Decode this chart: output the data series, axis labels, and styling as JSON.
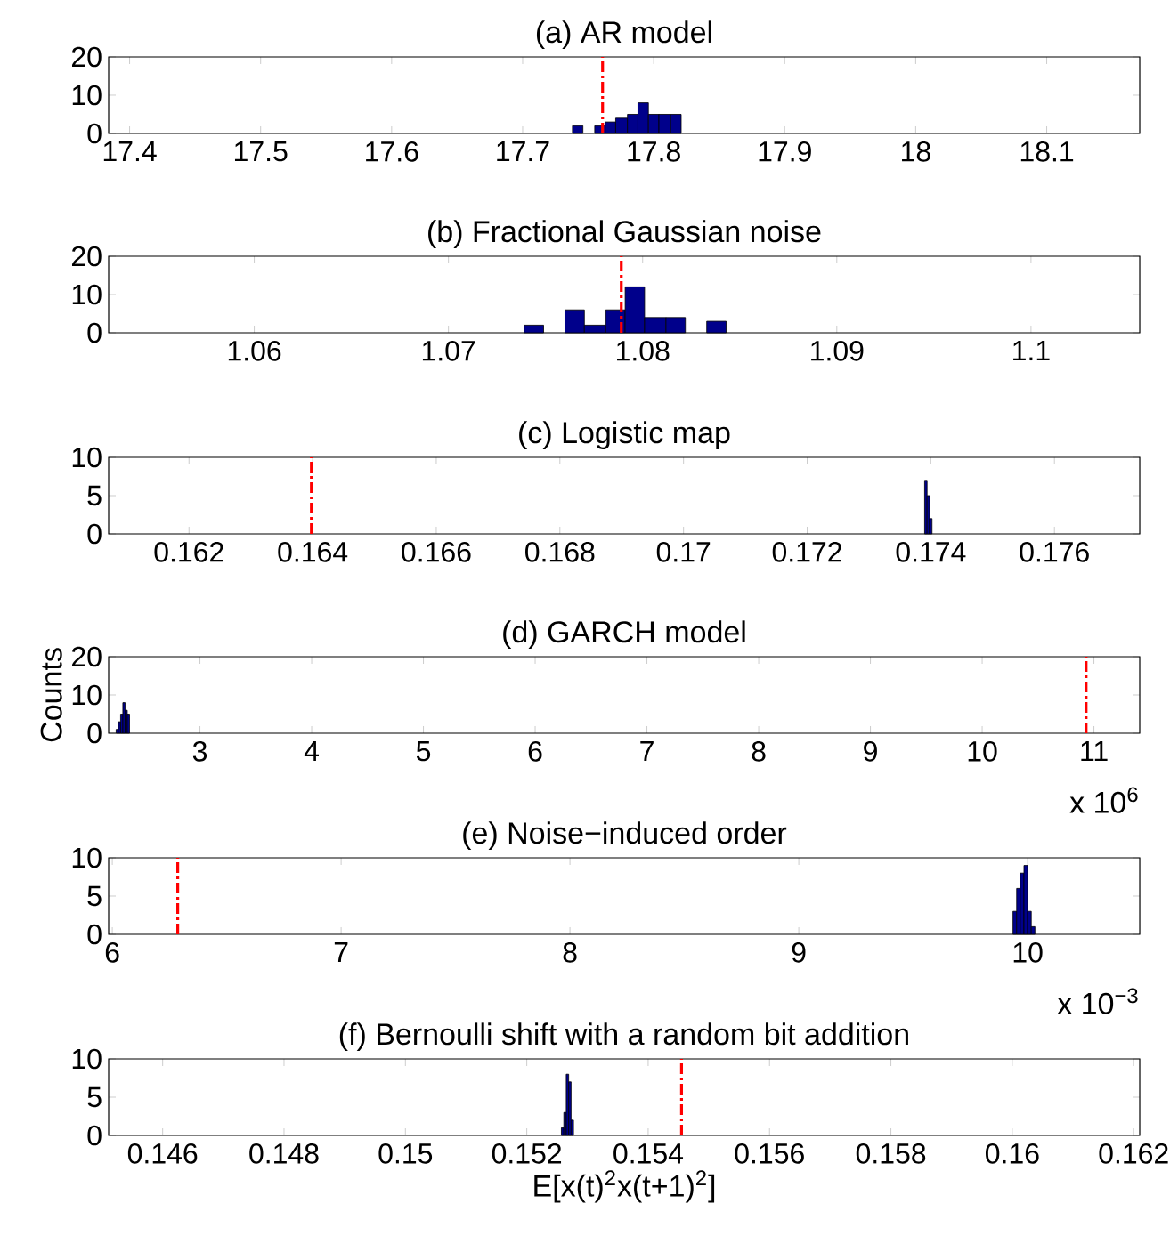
{
  "chart_data": [
    {
      "type": "histogram",
      "title": "(a) AR model",
      "bins": [
        17.738,
        17.746,
        17.755,
        17.763,
        17.771,
        17.78,
        17.788,
        17.796,
        17.804,
        17.813,
        17.821
      ],
      "values": [
        2,
        0,
        2,
        3,
        4,
        5,
        8,
        5,
        5,
        5
      ],
      "color": "#00008b",
      "xlim": [
        17.384,
        18.171
      ],
      "xticks": [
        17.4,
        17.5,
        17.6,
        17.7,
        17.8,
        17.9,
        18,
        18.1
      ],
      "ylim": [
        0,
        20
      ],
      "yticks": [
        0,
        10,
        20
      ],
      "ref_lines": [
        {
          "axis": "x",
          "value": 17.761,
          "color": "#ff0000",
          "line_style": "dashed"
        }
      ]
    },
    {
      "type": "histogram",
      "title": "(b) Fractional Gaussian noise",
      "bins": [
        1.0739,
        1.0749,
        1.076,
        1.077,
        1.0781,
        1.0791,
        1.0801,
        1.0812,
        1.0822,
        1.0833,
        1.0843
      ],
      "values": [
        2,
        0,
        6,
        2,
        6,
        12,
        4,
        4,
        0,
        3
      ],
      "color": "#00008b",
      "xlim": [
        1.0525,
        1.1056
      ],
      "xticks": [
        1.06,
        1.07,
        1.08,
        1.09,
        1.1
      ],
      "ylim": [
        0,
        20
      ],
      "yticks": [
        0,
        10,
        20
      ],
      "ref_lines": [
        {
          "axis": "x",
          "value": 1.0789,
          "color": "#ff0000",
          "line_style": "dashed"
        }
      ]
    },
    {
      "type": "histogram",
      "title": "(c) Logistic map",
      "bins": [
        0.1739,
        0.17394,
        0.17398,
        0.17402
      ],
      "values": [
        7,
        5,
        2
      ],
      "color": "#00008b",
      "xlim": [
        0.1607,
        0.17738
      ],
      "xticks": [
        0.162,
        0.164,
        0.166,
        0.168,
        0.17,
        0.172,
        0.174,
        0.176
      ],
      "ylim": [
        0,
        10
      ],
      "yticks": [
        0,
        5,
        10
      ],
      "ref_lines": [
        {
          "axis": "x",
          "value": 0.16398,
          "color": "#ff0000",
          "line_style": "dashed"
        }
      ]
    },
    {
      "type": "histogram",
      "title": "(d) GARCH model",
      "ylabel": "Counts",
      "annotations": [
        "x 10$^{6}$"
      ],
      "bins": [
        2.25,
        2.27,
        2.29,
        2.31,
        2.33,
        2.35,
        2.37
      ],
      "values": [
        1,
        3,
        5,
        8,
        6,
        5
      ],
      "color": "#00008b",
      "xlim": [
        2.183,
        11.41
      ],
      "xticks": [
        3,
        4,
        5,
        6,
        7,
        8,
        9,
        10,
        11
      ],
      "ylim": [
        0,
        20
      ],
      "yticks": [
        0,
        10,
        20
      ],
      "ref_lines": [
        {
          "axis": "x",
          "value": 10.93,
          "color": "#ff0000",
          "line_style": "dashed"
        }
      ]
    },
    {
      "type": "histogram",
      "title": "(e) Noise−induced order",
      "annotations": [
        "x 10$^{−3}$"
      ],
      "bins": [
        9.936,
        9.952,
        9.968,
        9.984,
        10.0,
        10.016,
        10.032
      ],
      "values": [
        3,
        6,
        8,
        9,
        3,
        1
      ],
      "color": "#00008b",
      "xlim": [
        5.984,
        10.49
      ],
      "xticks": [
        6,
        7,
        8,
        9,
        10
      ],
      "ylim": [
        0,
        10
      ],
      "yticks": [
        0,
        5,
        10
      ],
      "ref_lines": [
        {
          "axis": "x",
          "value": 6.286,
          "color": "#ff0000",
          "line_style": "dashed"
        }
      ]
    },
    {
      "type": "histogram",
      "title": "(f) Bernoulli shift with a random bit addition",
      "xlabel": "E[x(t)$^{2}$x(t+1)$^{2}$]",
      "bins": [
        0.15257,
        0.15261,
        0.15265,
        0.15269,
        0.15273,
        0.15277
      ],
      "values": [
        1,
        3,
        8,
        7,
        2
      ],
      "color": "#00008b",
      "xlim": [
        0.14511,
        0.1621
      ],
      "xticks": [
        0.146,
        0.148,
        0.15,
        0.152,
        0.154,
        0.156,
        0.158,
        0.16,
        0.162
      ],
      "ylim": [
        0,
        10
      ],
      "yticks": [
        0,
        5,
        10
      ],
      "ref_lines": [
        {
          "axis": "x",
          "value": 0.15455,
          "color": "#ff0000",
          "line_style": "dashed"
        }
      ]
    }
  ]
}
